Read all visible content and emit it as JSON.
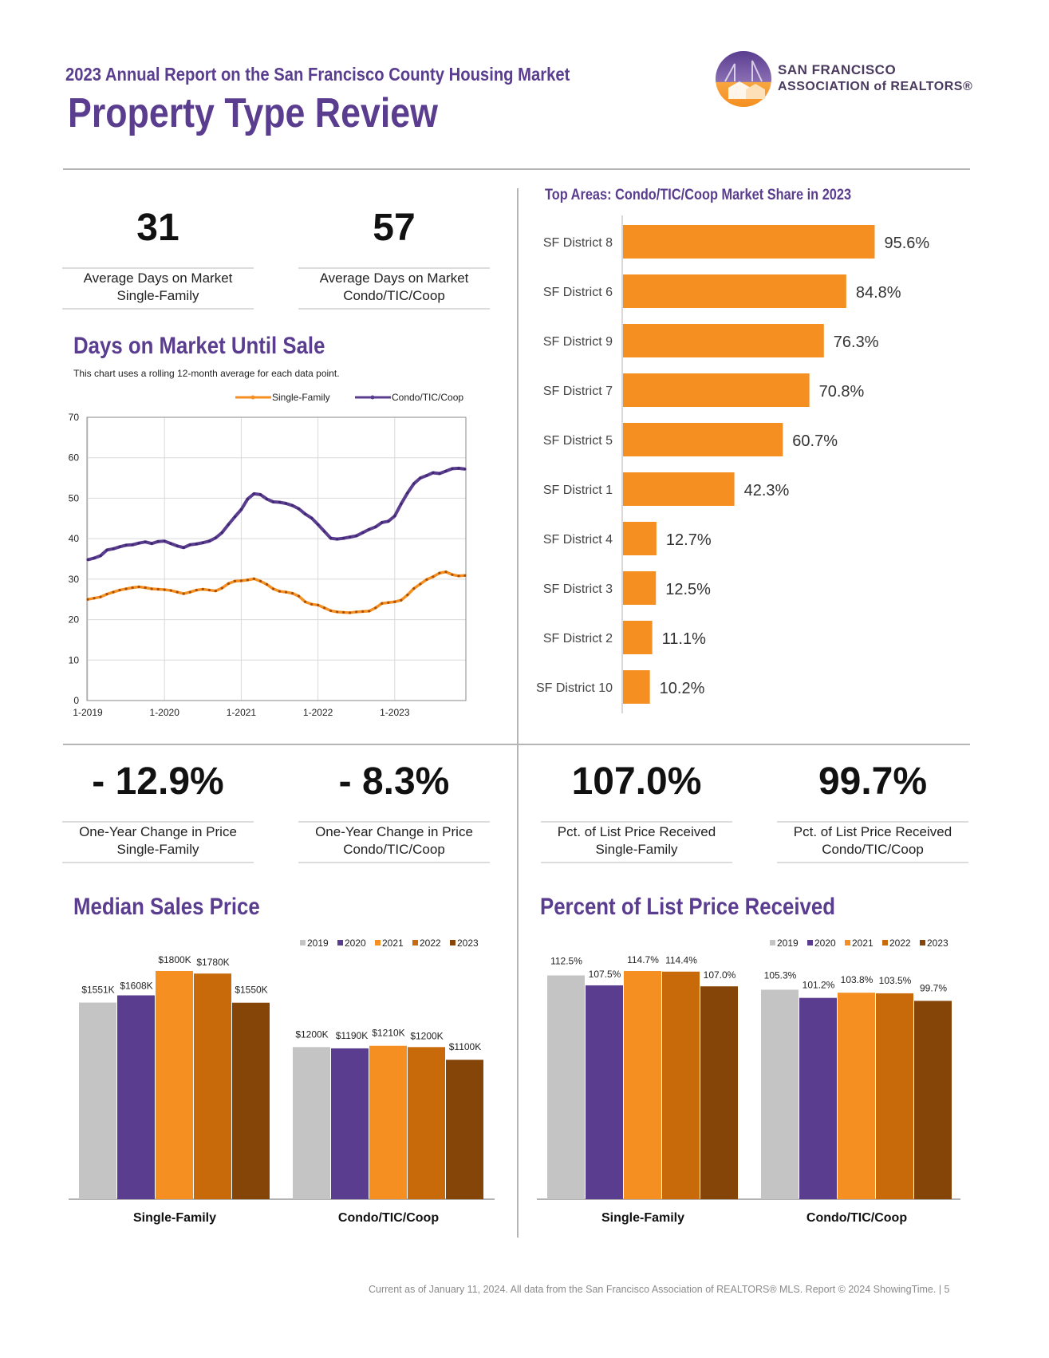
{
  "header": {
    "report_title": "2023 Annual Report on the San Francisco County Housing Market",
    "page_title": "Property Type Review",
    "logo_line1": "SAN FRANCISCO",
    "logo_line2": "ASSOCIATION of REALTORS®"
  },
  "stats_top": [
    {
      "value": "31",
      "label1": "Average Days on Market",
      "label2": "Single-Family"
    },
    {
      "value": "57",
      "label1": "Average Days on Market",
      "label2": "Condo/TIC/Coop"
    }
  ],
  "stats_bottom": [
    {
      "value": "- 12.9%",
      "label1": "One-Year Change in Price",
      "label2": "Single-Family"
    },
    {
      "value": "- 8.3%",
      "label1": "One-Year Change in Price",
      "label2": "Condo/TIC/Coop"
    },
    {
      "value": "107.0%",
      "label1": "Pct. of List Price Received",
      "label2": "Single-Family"
    },
    {
      "value": "99.7%",
      "label1": "Pct. of List Price Received",
      "label2": "Condo/TIC/Coop"
    }
  ],
  "sections": {
    "dom_title": "Days on Market Until Sale",
    "dom_note": "This chart uses a rolling 12-month average for each data point.",
    "top_areas_title": "Top Areas: Condo/TIC/Coop Market Share in 2023",
    "median_title": "Median Sales Price",
    "pct_title": "Percent of List Price Received"
  },
  "footer": "Current as of January 11, 2024. All data from the San Francisco Association of REALTORS® MLS. Report © 2024 ShowingTime.  |  5",
  "colors": {
    "purple": "#5a3d8f",
    "orange": "#f58f21",
    "y2019": "#c4c4c4",
    "y2020": "#5a3d8f",
    "y2021": "#f58f21",
    "y2022": "#c8690a",
    "y2023": "#854508"
  },
  "chart_data": [
    {
      "id": "dom",
      "type": "line",
      "ylim": [
        0,
        70
      ],
      "yticks": [
        0,
        10,
        20,
        30,
        40,
        50,
        60,
        70
      ],
      "xticks": [
        "1-2019",
        "1-2020",
        "1-2021",
        "1-2022",
        "1-2023"
      ],
      "x": [
        "1-2019",
        "2-2019",
        "3-2019",
        "4-2019",
        "5-2019",
        "6-2019",
        "7-2019",
        "8-2019",
        "9-2019",
        "10-2019",
        "11-2019",
        "12-2019",
        "1-2020",
        "2-2020",
        "3-2020",
        "4-2020",
        "5-2020",
        "6-2020",
        "7-2020",
        "8-2020",
        "9-2020",
        "10-2020",
        "11-2020",
        "12-2020",
        "1-2021",
        "2-2021",
        "3-2021",
        "4-2021",
        "5-2021",
        "6-2021",
        "7-2021",
        "8-2021",
        "9-2021",
        "10-2021",
        "11-2021",
        "12-2021",
        "1-2022",
        "2-2022",
        "3-2022",
        "4-2022",
        "5-2022",
        "6-2022",
        "7-2022",
        "8-2022",
        "9-2022",
        "10-2022",
        "11-2022",
        "12-2022",
        "1-2023",
        "2-2023",
        "3-2023",
        "4-2023",
        "5-2023",
        "6-2023",
        "7-2023",
        "8-2023",
        "9-2023",
        "10-2023",
        "11-2023",
        "12-2023"
      ],
      "series": [
        {
          "name": "Single-Family",
          "color": "#f58f21",
          "values": [
            25,
            25.3,
            25.6,
            26.3,
            26.8,
            27.3,
            27.6,
            27.9,
            28.1,
            27.9,
            27.6,
            27.5,
            27.4,
            27.2,
            26.8,
            26.4,
            26.8,
            27.3,
            27.5,
            27.3,
            27.1,
            27.8,
            28.9,
            29.5,
            29.6,
            29.8,
            30.1,
            29.5,
            28.7,
            27.6,
            27,
            26.8,
            26.5,
            25.8,
            24.4,
            23.8,
            23.6,
            22.9,
            22.2,
            21.9,
            21.8,
            21.7,
            21.9,
            22,
            22.1,
            22.9,
            24,
            24.2,
            24.4,
            24.8,
            26.1,
            27.7,
            28.8,
            29.9,
            30.6,
            31.5,
            31.8,
            31.1,
            30.8,
            30.9
          ]
        },
        {
          "name": "Condo/TIC/Coop",
          "color": "#5a3d8f",
          "values": [
            34.8,
            35.2,
            35.8,
            37.2,
            37.5,
            38,
            38.4,
            38.5,
            38.9,
            39.2,
            38.8,
            39.3,
            39.4,
            38.8,
            38.2,
            37.8,
            38.5,
            38.7,
            39,
            39.4,
            40.2,
            41.5,
            43.5,
            45.4,
            47.2,
            49.8,
            51.1,
            50.9,
            49.8,
            49.1,
            49,
            48.7,
            48.2,
            47.4,
            46.1,
            45.1,
            43.5,
            41.8,
            40.1,
            39.9,
            40.1,
            40.4,
            40.7,
            41.5,
            42.3,
            42.9,
            44,
            44.3,
            45.6,
            48.6,
            51.3,
            53.6,
            55,
            55.6,
            56.3,
            56.1,
            56.7,
            57.3,
            57.4,
            57.2
          ]
        }
      ]
    },
    {
      "id": "top_areas",
      "type": "bar",
      "title": "Top Areas: Condo/TIC/Coop Market Share in 2023",
      "categories": [
        "SF District 8",
        "SF District 6",
        "SF District 9",
        "SF District 7",
        "SF District 5",
        "SF District 1",
        "SF District 4",
        "SF District 3",
        "SF District 2",
        "SF District 10"
      ],
      "values": [
        95.6,
        84.8,
        76.3,
        70.8,
        60.7,
        42.3,
        12.7,
        12.5,
        11.1,
        10.2
      ],
      "labels": [
        "95.6%",
        "84.8%",
        "76.3%",
        "70.8%",
        "60.7%",
        "42.3%",
        "12.7%",
        "12.5%",
        "11.1%",
        "10.2%"
      ],
      "xlim": [
        0,
        100
      ],
      "color": "#f58f21"
    },
    {
      "id": "median",
      "type": "bar",
      "title": "Median Sales Price",
      "categories": [
        "Single-Family",
        "Condo/TIC/Coop"
      ],
      "years": [
        "2019",
        "2020",
        "2021",
        "2022",
        "2023"
      ],
      "series": [
        {
          "name": "2019",
          "values": [
            1551,
            1200
          ]
        },
        {
          "name": "2020",
          "values": [
            1608,
            1190
          ]
        },
        {
          "name": "2021",
          "values": [
            1800,
            1210
          ]
        },
        {
          "name": "2022",
          "values": [
            1780,
            1200
          ]
        },
        {
          "name": "2023",
          "values": [
            1550,
            1100
          ]
        }
      ],
      "labels": [
        [
          "$1551K",
          "$1200K"
        ],
        [
          "$1608K",
          "$1190K"
        ],
        [
          "$1800K",
          "$1210K"
        ],
        [
          "$1780K",
          "$1200K"
        ],
        [
          "$1550K",
          "$1100K"
        ]
      ],
      "ylim": [
        0,
        1800
      ]
    },
    {
      "id": "pct",
      "type": "bar",
      "title": "Percent of List Price Received",
      "categories": [
        "Single-Family",
        "Condo/TIC/Coop"
      ],
      "years": [
        "2019",
        "2020",
        "2021",
        "2022",
        "2023"
      ],
      "series": [
        {
          "name": "2019",
          "values": [
            112.5,
            105.3
          ]
        },
        {
          "name": "2020",
          "values": [
            107.5,
            101.2
          ]
        },
        {
          "name": "2021",
          "values": [
            114.7,
            103.8
          ]
        },
        {
          "name": "2022",
          "values": [
            114.4,
            103.5
          ]
        },
        {
          "name": "2023",
          "values": [
            107.0,
            99.7
          ]
        }
      ],
      "labels": [
        [
          "112.5%",
          "105.3%"
        ],
        [
          "107.5%",
          "101.2%"
        ],
        [
          "114.7%",
          "103.8%"
        ],
        [
          "114.4%",
          "103.5%"
        ],
        [
          "107.0%",
          "99.7%"
        ]
      ],
      "ylim": [
        0,
        114.7
      ]
    }
  ]
}
